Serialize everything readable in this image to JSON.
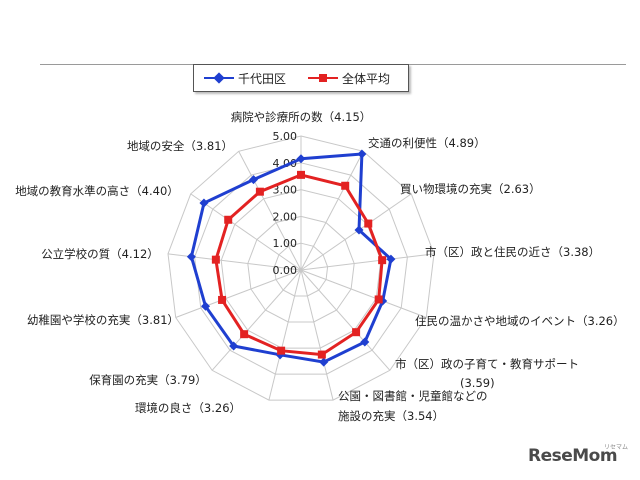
{
  "chart_data": {
    "type": "radar",
    "categories": [
      "病院や診療所の数（4.15）",
      "交通の利便性（4.89）",
      "買い物環境の充実（2.63）",
      "市（区）政と住民の近さ（3.38）",
      "住民の温かさや地域のイベント（3.26）",
      "市（区）政の子育て・教育サポート|(3.59)",
      "公園・図書館・児童館などの|施設の充実（3.54）",
      "環境の良さ（3.26）",
      "保育園の充実（3.79）",
      "幼稚園や学校の充実（3.81）",
      "公立学校の質（4.12）",
      "地域の教育水準の高さ（4.40）",
      "地域の安全（3.81）"
    ],
    "series": [
      {
        "name": "千代田区",
        "color": "#1f3fd0",
        "marker": "diamond",
        "values": [
          4.15,
          4.89,
          2.63,
          3.38,
          3.26,
          3.59,
          3.54,
          3.26,
          3.79,
          3.81,
          4.12,
          4.4,
          3.81
        ]
      },
      {
        "name": "全体平均",
        "color": "#e32222",
        "marker": "square",
        "values": [
          3.55,
          3.55,
          3.05,
          3.05,
          3.1,
          3.1,
          3.25,
          3.1,
          3.2,
          3.15,
          3.2,
          3.3,
          3.3
        ]
      }
    ],
    "rlim": [
      0,
      5
    ],
    "ticks": [
      "0.00",
      "1.00",
      "2.00",
      "3.00",
      "4.00",
      "5.00"
    ],
    "grid": true,
    "legend_position": "top"
  },
  "branding": {
    "logo": "ReseMom",
    "logo_small": "リセマム"
  }
}
